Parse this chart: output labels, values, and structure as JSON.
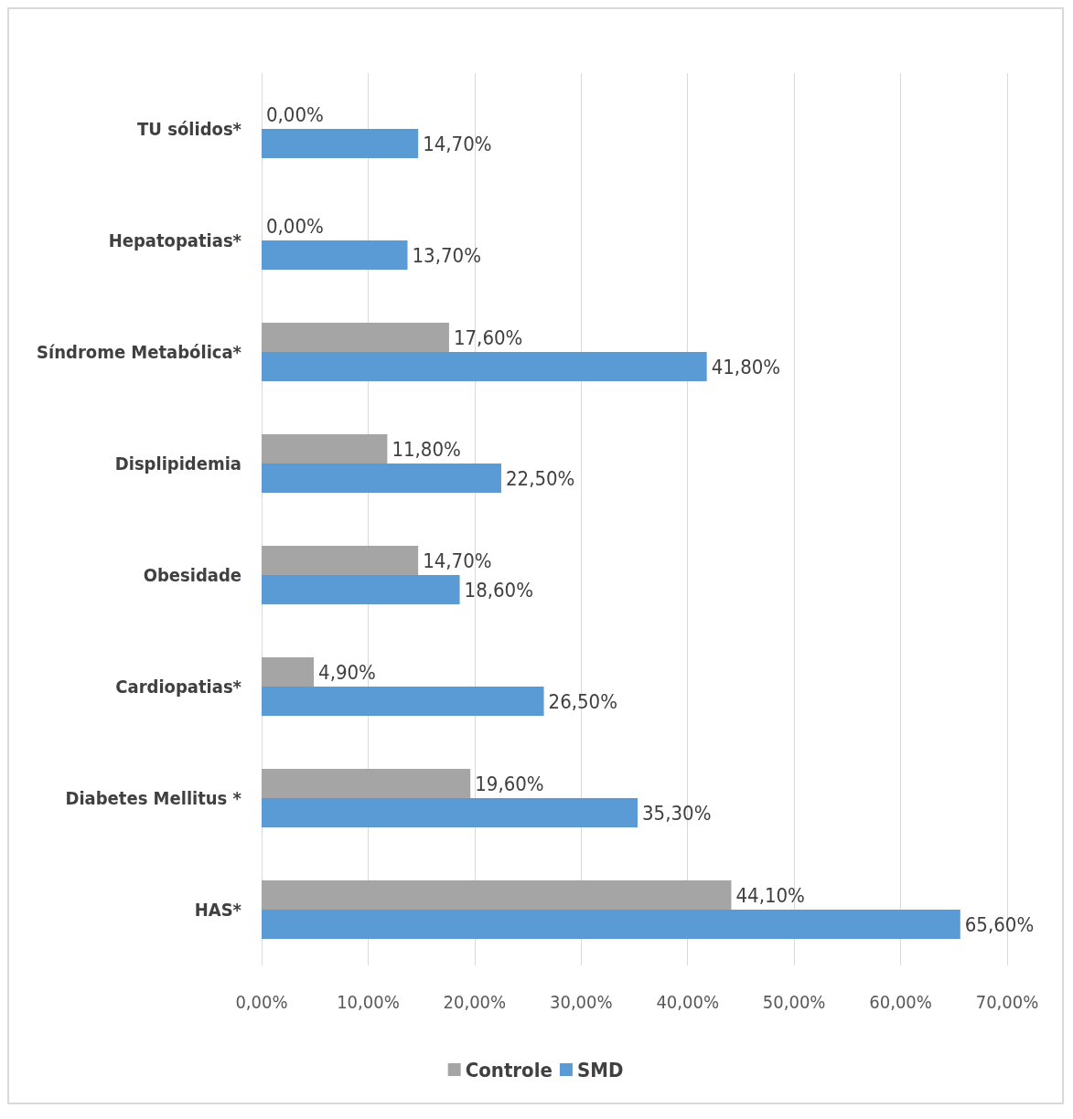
{
  "chart_data": {
    "type": "bar",
    "orientation": "horizontal",
    "categories": [
      "TU sólidos*",
      "Hepatopatias*",
      "Síndrome Metabólica*",
      "Displipidemia",
      "Obesidade",
      "Cardiopatias*",
      "Diabetes Mellitus *",
      "HAS*"
    ],
    "series": [
      {
        "name": "Controle",
        "color": "#a5a5a5",
        "values": [
          0,
          0,
          17.6,
          11.8,
          14.7,
          4.9,
          19.6,
          44.1
        ],
        "value_labels": [
          "0,00%",
          "0,00%",
          "17,60%",
          "11,80%",
          "14,70%",
          "4,90%",
          "19,60%",
          "44,10%"
        ]
      },
      {
        "name": "SMD",
        "color": "#5b9bd5",
        "values": [
          14.7,
          13.7,
          41.8,
          22.5,
          18.6,
          26.5,
          35.3,
          65.6
        ],
        "value_labels": [
          "14,70%",
          "13,70%",
          "41,80%",
          "22,50%",
          "18,60%",
          "26,50%",
          "35,30%",
          "65,60%"
        ]
      }
    ],
    "xlim": [
      0,
      70
    ],
    "xticks": [
      {
        "value": 0,
        "label": "0,00%"
      },
      {
        "value": 10,
        "label": "10,00%"
      },
      {
        "value": 20,
        "label": "20,00%"
      },
      {
        "value": 30,
        "label": "30,00%"
      },
      {
        "value": 40,
        "label": "40,00%"
      },
      {
        "value": 50,
        "label": "50,00%"
      },
      {
        "value": 60,
        "label": "60,00%"
      },
      {
        "value": 70,
        "label": "70,00%"
      }
    ],
    "grid": "x",
    "legend": "bottom"
  }
}
